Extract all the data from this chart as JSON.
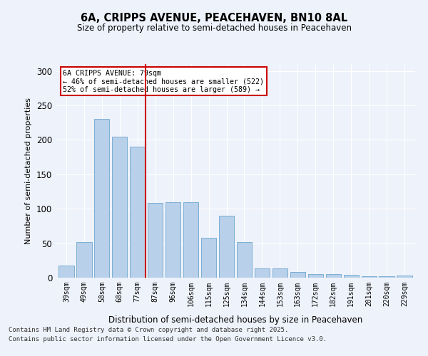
{
  "title": "6A, CRIPPS AVENUE, PEACEHAVEN, BN10 8AL",
  "subtitle": "Size of property relative to semi-detached houses in Peacehaven",
  "xlabel": "Distribution of semi-detached houses by size in Peacehaven",
  "ylabel": "Number of semi-detached properties",
  "categories": [
    "39sqm",
    "49sqm",
    "58sqm",
    "68sqm",
    "77sqm",
    "87sqm",
    "96sqm",
    "106sqm",
    "115sqm",
    "125sqm",
    "134sqm",
    "144sqm",
    "153sqm",
    "163sqm",
    "172sqm",
    "182sqm",
    "191sqm",
    "201sqm",
    "220sqm",
    "229sqm"
  ],
  "values": [
    18,
    52,
    230,
    205,
    190,
    108,
    110,
    110,
    58,
    90,
    52,
    13,
    13,
    8,
    5,
    5,
    4,
    2,
    2,
    3
  ],
  "bar_color": "#b8d0ea",
  "bar_edge_color": "#7aafd4",
  "background_color": "#eef2fa",
  "grid_color": "#ffffff",
  "annotation_text": "6A CRIPPS AVENUE: 79sqm\n← 46% of semi-detached houses are smaller (522)\n52% of semi-detached houses are larger (589) →",
  "annotation_box_color": "#ffffff",
  "annotation_box_edge_color": "#cc0000",
  "line_color": "#cc0000",
  "footer_line1": "Contains HM Land Registry data © Crown copyright and database right 2025.",
  "footer_line2": "Contains public sector information licensed under the Open Government Licence v3.0.",
  "ylim": [
    0,
    310
  ],
  "yticks": [
    0,
    50,
    100,
    150,
    200,
    250,
    300
  ],
  "line_x_index": 4.45
}
